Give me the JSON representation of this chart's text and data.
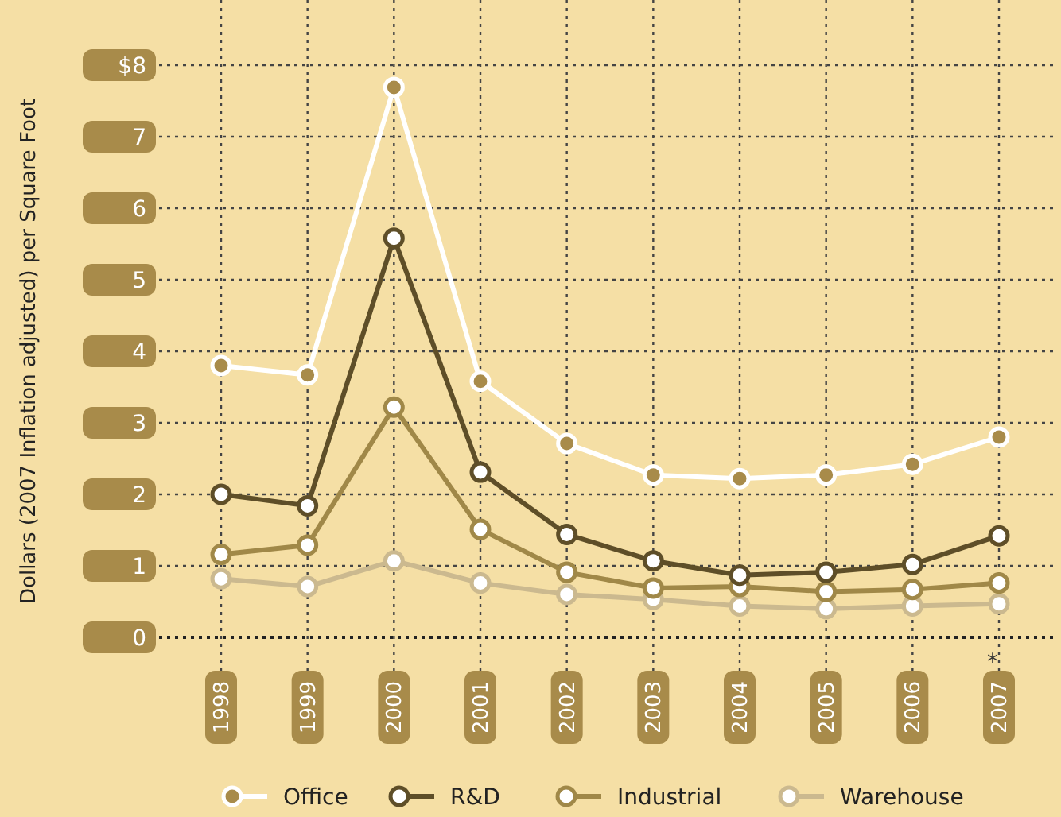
{
  "chart_data": {
    "type": "line",
    "ylabel": "Dollars (2007 Inflation adjusted) per Square Foot",
    "categories": [
      "1998",
      "1999",
      "2000",
      "2001",
      "2002",
      "2003",
      "2004",
      "2005",
      "2006",
      "2007"
    ],
    "series": [
      {
        "name": "Office",
        "color": "#ffffff",
        "values": [
          3.8,
          3.67,
          7.69,
          3.58,
          2.71,
          2.27,
          2.22,
          2.27,
          2.42,
          2.8
        ]
      },
      {
        "name": "R&D",
        "color": "#5e4e28",
        "values": [
          2.0,
          1.84,
          5.58,
          2.31,
          1.44,
          1.07,
          0.87,
          0.91,
          1.02,
          1.42
        ]
      },
      {
        "name": "Industrial",
        "color": "#a08848",
        "values": [
          1.16,
          1.29,
          3.22,
          1.51,
          0.91,
          0.69,
          0.71,
          0.64,
          0.67,
          0.76
        ]
      },
      {
        "name": "Warehouse",
        "color": "#cbb98f",
        "values": [
          0.82,
          0.71,
          1.07,
          0.76,
          0.6,
          0.53,
          0.44,
          0.4,
          0.44,
          0.47
        ]
      }
    ],
    "ylim": [
      0,
      8
    ],
    "yticks": [
      0,
      1,
      2,
      3,
      4,
      5,
      6,
      7,
      {
        "value": 8,
        "label": "$8"
      }
    ],
    "grid": true,
    "legend": "bottom",
    "marker": "circle",
    "line_style": "solid",
    "annotations": [
      "*"
    ]
  }
}
